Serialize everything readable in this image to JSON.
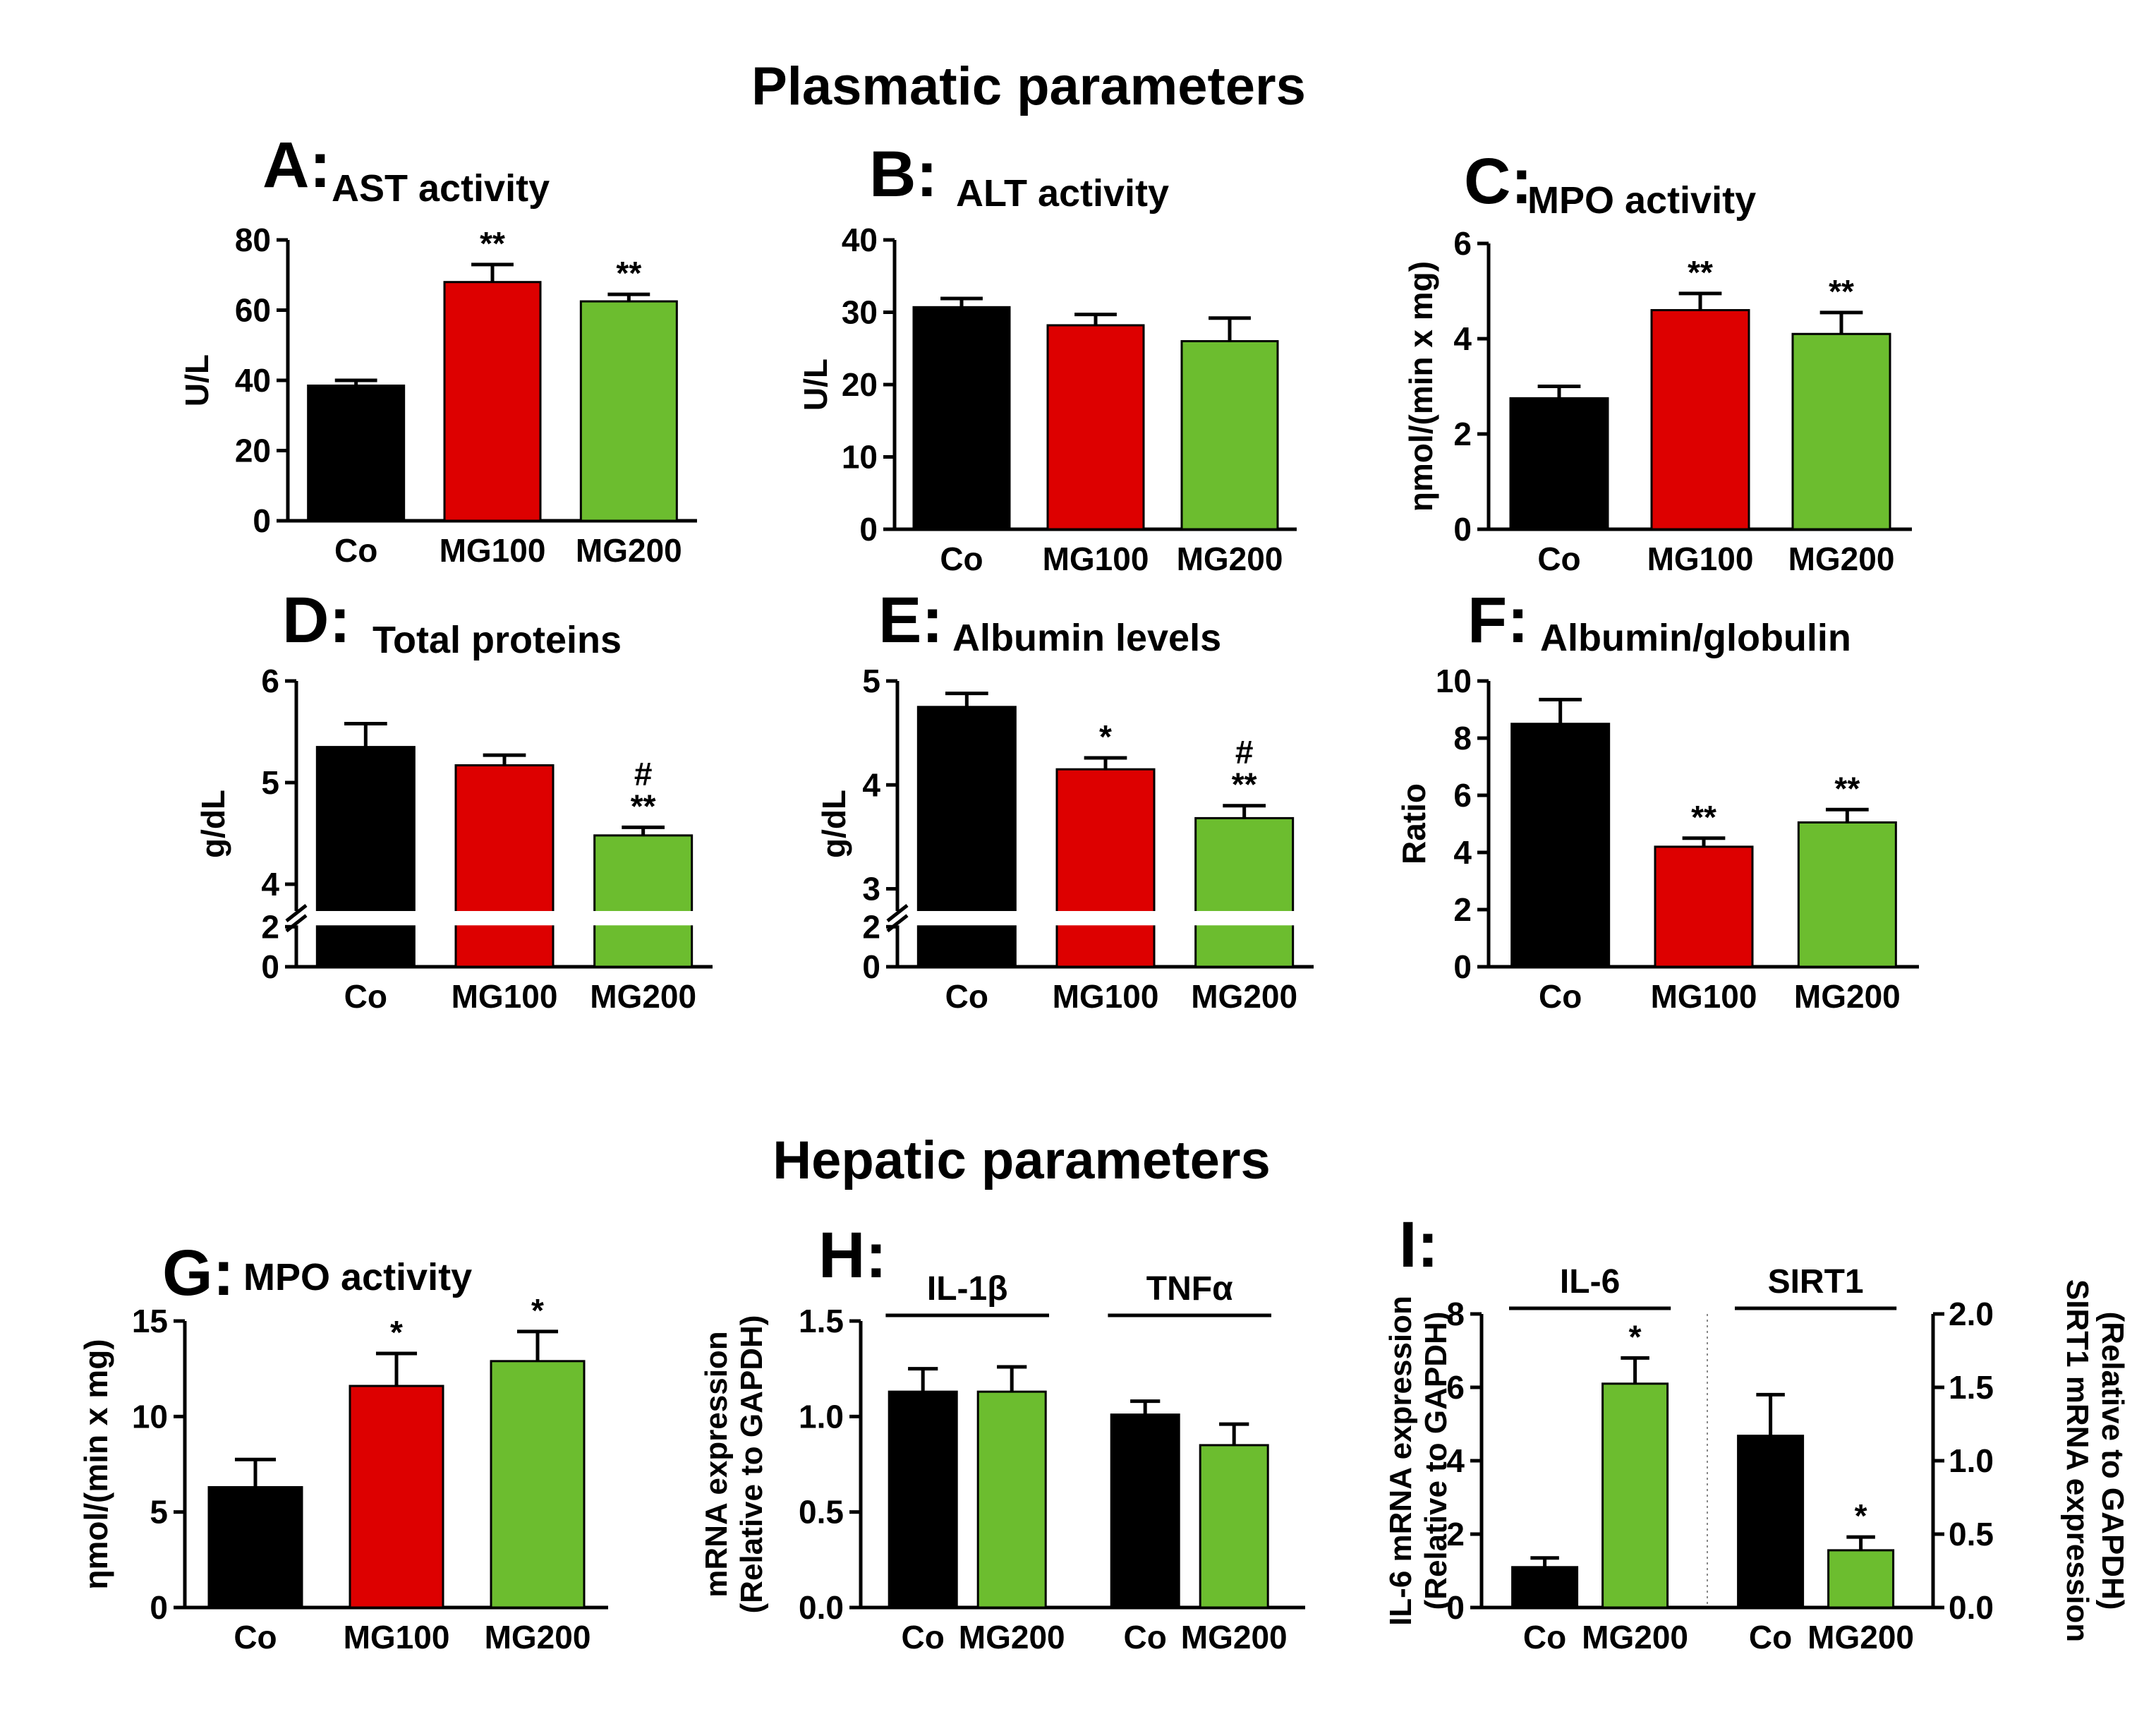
{
  "sections": {
    "plasmatic": "Plasmatic parameters",
    "hepatic": "Hepatic parameters"
  },
  "colors": {
    "Co": "#000000",
    "MG100": "#dd0000",
    "MG200": "#6cbd2f"
  },
  "chart_data": [
    {
      "id": "A",
      "letter": "A:",
      "title": "AST activity",
      "type": "bar",
      "categories": [
        "Co",
        "MG100",
        "MG200"
      ],
      "values": [
        38.5,
        68,
        62.5
      ],
      "errors": [
        1.5,
        5,
        2
      ],
      "sig": [
        "",
        "**",
        "**"
      ],
      "sig2": [
        "",
        "",
        ""
      ],
      "ylabel": "U/L",
      "ylim": [
        0,
        80
      ],
      "yticks": [
        "0",
        "20",
        "40",
        "60",
        "80"
      ]
    },
    {
      "id": "B",
      "letter": "B:",
      "title": "ALT activity",
      "type": "bar",
      "categories": [
        "Co",
        "MG100",
        "MG200"
      ],
      "values": [
        30.7,
        28.2,
        26
      ],
      "errors": [
        1.2,
        1.5,
        3.2
      ],
      "sig": [
        "",
        "",
        ""
      ],
      "sig2": [
        "",
        "",
        ""
      ],
      "ylabel": "U/L",
      "ylim": [
        0,
        40
      ],
      "yticks": [
        "0",
        "10",
        "20",
        "30",
        "40"
      ]
    },
    {
      "id": "C",
      "letter": "C:",
      "title": "MPO activity",
      "type": "bar",
      "categories": [
        "Co",
        "MG100",
        "MG200"
      ],
      "values": [
        2.75,
        4.6,
        4.1
      ],
      "errors": [
        0.25,
        0.35,
        0.45
      ],
      "sig": [
        "",
        "**",
        "**"
      ],
      "sig2": [
        "",
        "",
        ""
      ],
      "ylabel": "ηmol/(min x mg)",
      "ylim": [
        0,
        6
      ],
      "yticks": [
        "0",
        "2",
        "4",
        "6"
      ]
    },
    {
      "id": "D",
      "letter": "D:",
      "title": "Total proteins",
      "type": "bar",
      "categories": [
        "Co",
        "MG100",
        "MG200"
      ],
      "values": [
        5.35,
        5.17,
        4.48
      ],
      "errors": [
        0.23,
        0.1,
        0.08
      ],
      "sig": [
        "",
        "",
        "**"
      ],
      "sig2": [
        "",
        "",
        "#"
      ],
      "ylabel": "g/dL",
      "ylim": [
        0,
        6
      ],
      "axis_break": [
        2,
        3.75
      ],
      "yticks": [
        "0",
        "2",
        "4",
        "5",
        "6"
      ]
    },
    {
      "id": "E",
      "letter": "E:",
      "title": "Albumin levels",
      "type": "bar",
      "categories": [
        "Co",
        "MG100",
        "MG200"
      ],
      "values": [
        4.75,
        4.15,
        3.68
      ],
      "errors": [
        0.13,
        0.11,
        0.12
      ],
      "sig": [
        "",
        "*",
        "**"
      ],
      "sig2": [
        "",
        "",
        "#"
      ],
      "ylabel": "g/dL",
      "ylim": [
        0,
        5
      ],
      "axis_break": [
        2,
        2.8
      ],
      "yticks": [
        "0",
        "2",
        "3",
        "4",
        "5"
      ]
    },
    {
      "id": "F",
      "letter": "F:",
      "title": "Albumin/globulin",
      "type": "bar",
      "categories": [
        "Co",
        "MG100",
        "MG200"
      ],
      "values": [
        8.5,
        4.2,
        5.05
      ],
      "errors": [
        0.85,
        0.3,
        0.45
      ],
      "sig": [
        "",
        "**",
        "**"
      ],
      "sig2": [
        "",
        "",
        ""
      ],
      "ylabel": "Ratio",
      "ylim": [
        0,
        10
      ],
      "yticks": [
        "0",
        "2",
        "4",
        "6",
        "8",
        "10"
      ]
    },
    {
      "id": "G",
      "letter": "G:",
      "title": "MPO activity",
      "type": "bar",
      "categories": [
        "Co",
        "MG100",
        "MG200"
      ],
      "values": [
        6.3,
        11.6,
        12.9
      ],
      "errors": [
        1.45,
        1.7,
        1.55
      ],
      "sig": [
        "",
        "*",
        "*"
      ],
      "sig2": [
        "",
        "",
        ""
      ],
      "ylabel": "ηmol/(min x mg)",
      "ylim": [
        0,
        15
      ],
      "yticks": [
        "0",
        "5",
        "10",
        "15"
      ]
    },
    {
      "id": "H",
      "letter": "H:",
      "type": "bar",
      "ylabel_lines": [
        "mRNA expression",
        "(Relative to GAPDH)"
      ],
      "ylim": [
        0,
        1.5
      ],
      "yticks": [
        "0.0",
        "0.5",
        "1.0",
        "1.5"
      ],
      "groups": [
        {
          "label": "IL-1β",
          "categories": [
            "Co",
            "MG200"
          ],
          "values": [
            1.13,
            1.13
          ],
          "errors": [
            0.12,
            0.13
          ],
          "sig": [
            "",
            ""
          ]
        },
        {
          "label": "TNFα",
          "categories": [
            "Co",
            "MG200"
          ],
          "values": [
            1.01,
            0.85
          ],
          "errors": [
            0.07,
            0.11
          ],
          "sig": [
            "",
            ""
          ]
        }
      ]
    },
    {
      "id": "I",
      "letter": "I:",
      "type": "bar",
      "ylabel_lines": [
        "IL-6 mRNA expression",
        "(Relative to GAPDH)"
      ],
      "ylim": [
        0,
        8
      ],
      "yticks": [
        "0",
        "2",
        "4",
        "6",
        "8"
      ],
      "y2label_lines": [
        "SIRT1 mRNA expression",
        "(Relative to GAPDH)"
      ],
      "y2lim": [
        0,
        2
      ],
      "y2ticks": [
        "0.0",
        "0.5",
        "1.0",
        "1.5",
        "2.0"
      ],
      "groups": [
        {
          "label": "IL-6",
          "axis": "left",
          "categories": [
            "Co",
            "MG200"
          ],
          "values": [
            1.1,
            6.1
          ],
          "errors": [
            0.25,
            0.7
          ],
          "sig": [
            "",
            "*"
          ]
        },
        {
          "label": "SIRT1",
          "axis": "right",
          "categories": [
            "Co",
            "MG200"
          ],
          "values": [
            1.17,
            0.39
          ],
          "errors": [
            0.28,
            0.09
          ],
          "sig": [
            "",
            "*"
          ]
        }
      ]
    }
  ]
}
